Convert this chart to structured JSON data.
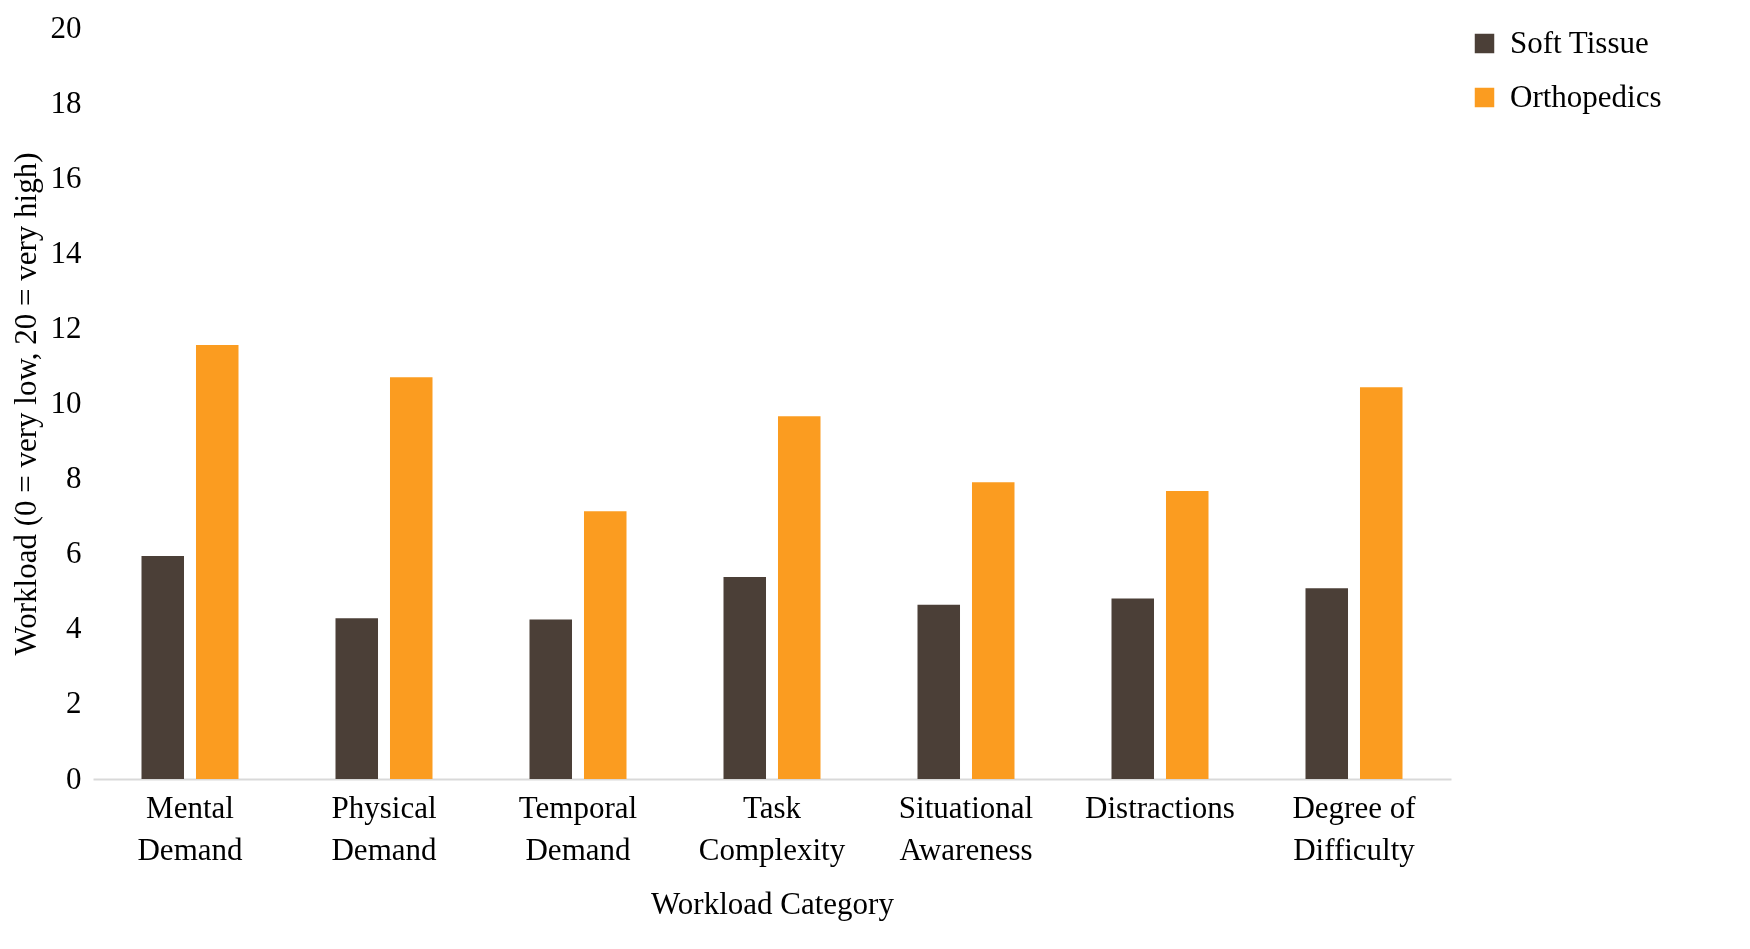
{
  "chart_data": {
    "type": "bar",
    "xlabel": "Workload Category",
    "ylabel": "Workload (0 = very low, 20 = very high)",
    "categories": [
      "Mental Demand",
      "Physical Demand",
      "Temporal Demand",
      "Task Complexity",
      "Situational Awareness",
      "Distractions",
      "Degree of Difficulty"
    ],
    "series": [
      {
        "name": "Soft Tissue",
        "color": "#4b3f37",
        "values": [
          5.94,
          4.28,
          4.25,
          5.38,
          4.64,
          4.81,
          5.08
        ]
      },
      {
        "name": "Orthopedics",
        "color": "#fb9c20",
        "values": [
          11.56,
          10.7,
          7.13,
          9.66,
          7.9,
          7.67,
          10.43
        ]
      }
    ],
    "ylim": [
      0,
      20
    ],
    "yticks": [
      0,
      2,
      4,
      6,
      8,
      10,
      12,
      14,
      16,
      18,
      20
    ],
    "grid": false,
    "legend": "right"
  }
}
